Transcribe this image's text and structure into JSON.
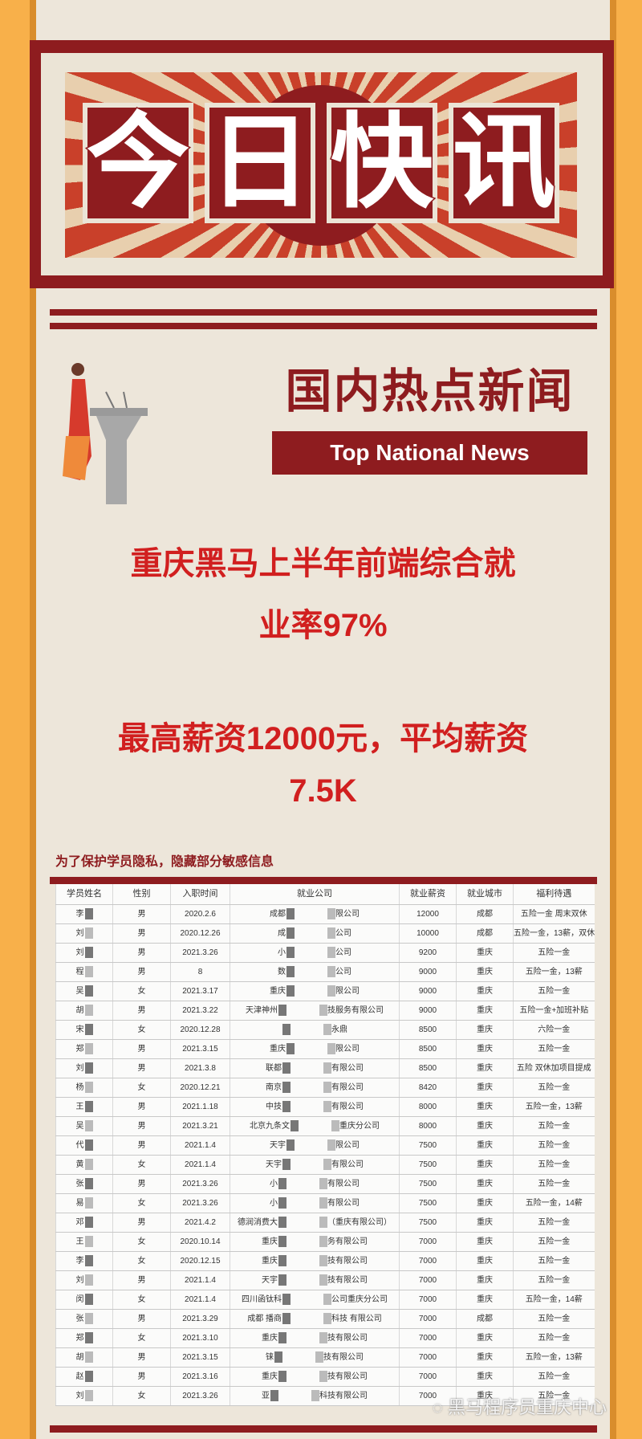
{
  "banner": {
    "title_chars": [
      "今",
      "日",
      "快",
      "讯"
    ]
  },
  "section": {
    "heading": "国内热点新闻",
    "subheading": "Top National News"
  },
  "headline": {
    "line1": "重庆黑马上半年前端综合就",
    "line2": "业率97%",
    "line3": "最高薪资12000元，平均薪资",
    "line4": "7.5K"
  },
  "table": {
    "caption": "为了保护学员隐私，隐藏部分敏感信息",
    "headers": [
      "学员姓名",
      "性别",
      "入职时间",
      "就业公司",
      "就业薪资",
      "就业城市",
      "福利待遇"
    ],
    "rows": [
      {
        "name": "李",
        "gender": "男",
        "date": "2020.2.6",
        "company_left": "成都",
        "company_right": "限公司",
        "salary": "12000",
        "city": "成都",
        "benefits": "五险一金 周末双休"
      },
      {
        "name": "刘",
        "gender": "男",
        "date": "2020.12.26",
        "company_left": "成",
        "company_right": "公司",
        "salary": "10000",
        "city": "成都",
        "benefits": "五险一金，13薪，双休"
      },
      {
        "name": "刘",
        "gender": "男",
        "date": "2021.3.26",
        "company_left": "小",
        "company_right": "公司",
        "salary": "9200",
        "city": "重庆",
        "benefits": "五险一金"
      },
      {
        "name": "程",
        "gender": "男",
        "date": "8",
        "company_left": "数",
        "company_right": "公司",
        "salary": "9000",
        "city": "重庆",
        "benefits": "五险一金，13薪"
      },
      {
        "name": "吴",
        "gender": "女",
        "date": "2021.3.17",
        "company_left": "重庆",
        "company_right": "限公司",
        "salary": "9000",
        "city": "重庆",
        "benefits": "五险一金"
      },
      {
        "name": "胡",
        "gender": "男",
        "date": "2021.3.22",
        "company_left": "天津神州",
        "company_right": "技服务有限公司",
        "salary": "9000",
        "city": "重庆",
        "benefits": "五险一金+加班补贴"
      },
      {
        "name": "宋",
        "gender": "女",
        "date": "2020.12.28",
        "company_left": "",
        "company_right": "永鼎",
        "salary": "8500",
        "city": "重庆",
        "benefits": "六险一金"
      },
      {
        "name": "郑",
        "gender": "男",
        "date": "2021.3.15",
        "company_left": "重庆",
        "company_right": "限公司",
        "salary": "8500",
        "city": "重庆",
        "benefits": "五险一金"
      },
      {
        "name": "刘",
        "gender": "男",
        "date": "2021.3.8",
        "company_left": "联都",
        "company_right": "有限公司",
        "salary": "8500",
        "city": "重庆",
        "benefits": "五险 双休加项目提成"
      },
      {
        "name": "杨",
        "gender": "女",
        "date": "2020.12.21",
        "company_left": "南京",
        "company_right": "有限公司",
        "salary": "8420",
        "city": "重庆",
        "benefits": "五险一金"
      },
      {
        "name": "王",
        "gender": "男",
        "date": "2021.1.18",
        "company_left": "中技",
        "company_right": "有限公司",
        "salary": "8000",
        "city": "重庆",
        "benefits": "五险一金，13薪"
      },
      {
        "name": "吴",
        "gender": "男",
        "date": "2021.3.21",
        "company_left": "北京九条文",
        "company_right": "重庆分公司",
        "salary": "8000",
        "city": "重庆",
        "benefits": "五险一金"
      },
      {
        "name": "代",
        "gender": "男",
        "date": "2021.1.4",
        "company_left": "天宇",
        "company_right": "限公司",
        "salary": "7500",
        "city": "重庆",
        "benefits": "五险一金"
      },
      {
        "name": "黄",
        "gender": "女",
        "date": "2021.1.4",
        "company_left": "天宇",
        "company_right": "有限公司",
        "salary": "7500",
        "city": "重庆",
        "benefits": "五险一金"
      },
      {
        "name": "张",
        "gender": "男",
        "date": "2021.3.26",
        "company_left": "小",
        "company_right": "有限公司",
        "salary": "7500",
        "city": "重庆",
        "benefits": "五险一金"
      },
      {
        "name": "易",
        "gender": "女",
        "date": "2021.3.26",
        "company_left": "小",
        "company_right": "有限公司",
        "salary": "7500",
        "city": "重庆",
        "benefits": "五险一金，14薪"
      },
      {
        "name": "邓",
        "gender": "男",
        "date": "2021.4.2",
        "company_left": "德润消费大",
        "company_right": "（重庆有限公司）",
        "salary": "7500",
        "city": "重庆",
        "benefits": "五险一金"
      },
      {
        "name": "王",
        "gender": "女",
        "date": "2020.10.14",
        "company_left": "重庆",
        "company_right": "务有限公司",
        "salary": "7000",
        "city": "重庆",
        "benefits": "五险一金"
      },
      {
        "name": "李",
        "gender": "女",
        "date": "2020.12.15",
        "company_left": "重庆",
        "company_right": "技有限公司",
        "salary": "7000",
        "city": "重庆",
        "benefits": "五险一金"
      },
      {
        "name": "刘",
        "gender": "男",
        "date": "2021.1.4",
        "company_left": "天宇",
        "company_right": "技有限公司",
        "salary": "7000",
        "city": "重庆",
        "benefits": "五险一金"
      },
      {
        "name": "闵",
        "gender": "女",
        "date": "2021.1.4",
        "company_left": "四川函钛科",
        "company_right": "公司重庆分公司",
        "salary": "7000",
        "city": "重庆",
        "benefits": "五险一金，14薪"
      },
      {
        "name": "张",
        "gender": "男",
        "date": "2021.3.29",
        "company_left": "成都 播商",
        "company_right": "科技 有限公司",
        "salary": "7000",
        "city": "成都",
        "benefits": "五险一金"
      },
      {
        "name": "郑",
        "gender": "女",
        "date": "2021.3.10",
        "company_left": "重庆",
        "company_right": "技有限公司",
        "salary": "7000",
        "city": "重庆",
        "benefits": "五险一金"
      },
      {
        "name": "胡",
        "gender": "男",
        "date": "2021.3.15",
        "company_left": "铼",
        "company_right": "技有限公司",
        "salary": "7000",
        "city": "重庆",
        "benefits": "五险一金，13薪"
      },
      {
        "name": "赵",
        "gender": "男",
        "date": "2021.3.16",
        "company_left": "重庆",
        "company_right": "技有限公司",
        "salary": "7000",
        "city": "重庆",
        "benefits": "五险一金"
      },
      {
        "name": "刘",
        "gender": "女",
        "date": "2021.3.26",
        "company_left": "亚",
        "company_right": "科技有限公司",
        "salary": "7000",
        "city": "重庆",
        "benefits": "五险一金"
      }
    ]
  },
  "watermark": {
    "text": "黑马程序员重庆中心",
    "icon": "wechat-icon"
  },
  "colors": {
    "background": "#f8b04a",
    "panel": "#ede6da",
    "brand_red": "#8e1c1f",
    "headline_red": "#d11f1f"
  }
}
